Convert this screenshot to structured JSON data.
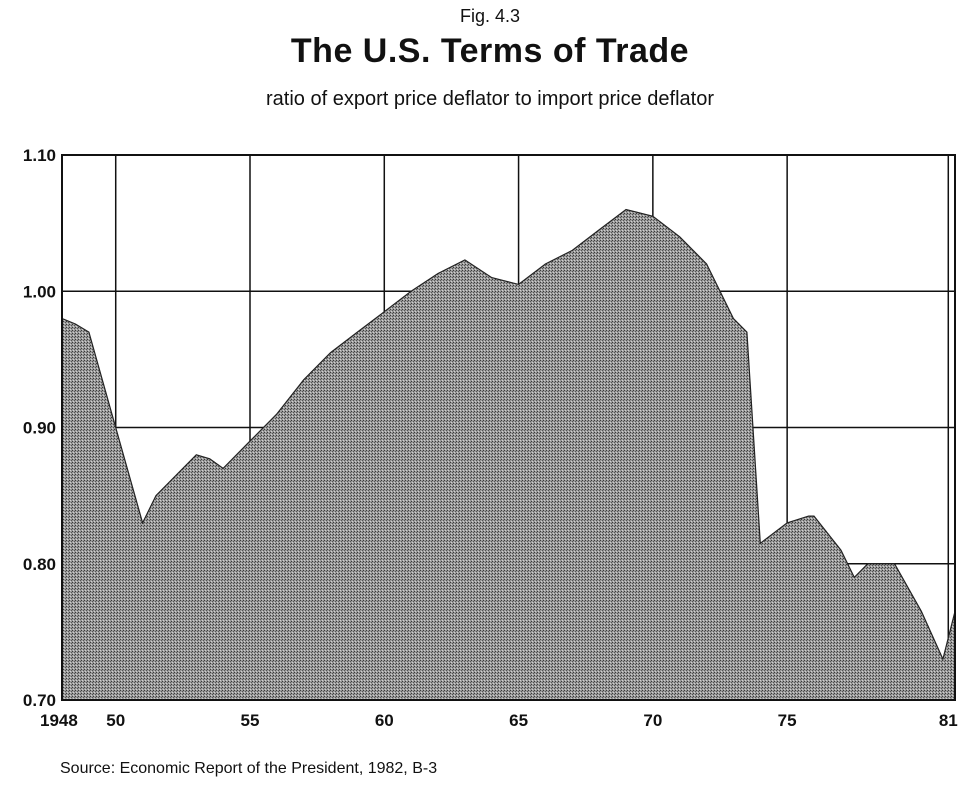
{
  "figure_label": "Fig. 4.3",
  "source": "Source: Economic Report of the President, 1982, B-3",
  "chart_data": {
    "type": "area",
    "title": "The U.S. Terms of Trade",
    "subtitle": "ratio of export price deflator to import price deflator",
    "xlabel": "",
    "ylabel": "",
    "xlim": [
      1948,
      1981.25
    ],
    "ylim": [
      0.7,
      1.1
    ],
    "grid": true,
    "fill_color": "#8a8a8a",
    "x_ticks": [
      {
        "value": 1948,
        "label": "1948"
      },
      {
        "value": 1950,
        "label": "50"
      },
      {
        "value": 1955,
        "label": "55"
      },
      {
        "value": 1960,
        "label": "60"
      },
      {
        "value": 1965,
        "label": "65"
      },
      {
        "value": 1970,
        "label": "70"
      },
      {
        "value": 1975,
        "label": "75"
      },
      {
        "value": 1981,
        "label": "81"
      }
    ],
    "y_ticks": [
      {
        "value": 0.7,
        "label": "0.70"
      },
      {
        "value": 0.8,
        "label": "0.80"
      },
      {
        "value": 0.9,
        "label": "0.90"
      },
      {
        "value": 1.0,
        "label": "1.00"
      },
      {
        "value": 1.1,
        "label": "1.10"
      }
    ],
    "x_grid": [
      1950,
      1955,
      1960,
      1965,
      1970,
      1975,
      1981
    ],
    "series": [
      {
        "x": [
          1948,
          1948.5,
          1949,
          1950,
          1951,
          1951.5,
          1952,
          1953,
          1953.5,
          1954,
          1955,
          1956,
          1957,
          1958,
          1959,
          1960,
          1961,
          1962,
          1963,
          1964,
          1965,
          1966,
          1967,
          1968,
          1969,
          1970,
          1971,
          1972,
          1973,
          1973.5,
          1974,
          1975,
          1975.8,
          1976,
          1977,
          1977.5,
          1978,
          1979,
          1980,
          1980.8,
          1981.25
        ],
        "y": [
          0.98,
          0.976,
          0.97,
          0.9,
          0.83,
          0.85,
          0.86,
          0.88,
          0.877,
          0.87,
          0.89,
          0.91,
          0.935,
          0.955,
          0.97,
          0.985,
          1.0,
          1.013,
          1.023,
          1.01,
          1.005,
          1.02,
          1.03,
          1.045,
          1.06,
          1.055,
          1.04,
          1.02,
          0.98,
          0.97,
          0.815,
          0.83,
          0.835,
          0.835,
          0.81,
          0.79,
          0.8,
          0.8,
          0.765,
          0.73,
          0.765
        ]
      }
    ]
  }
}
